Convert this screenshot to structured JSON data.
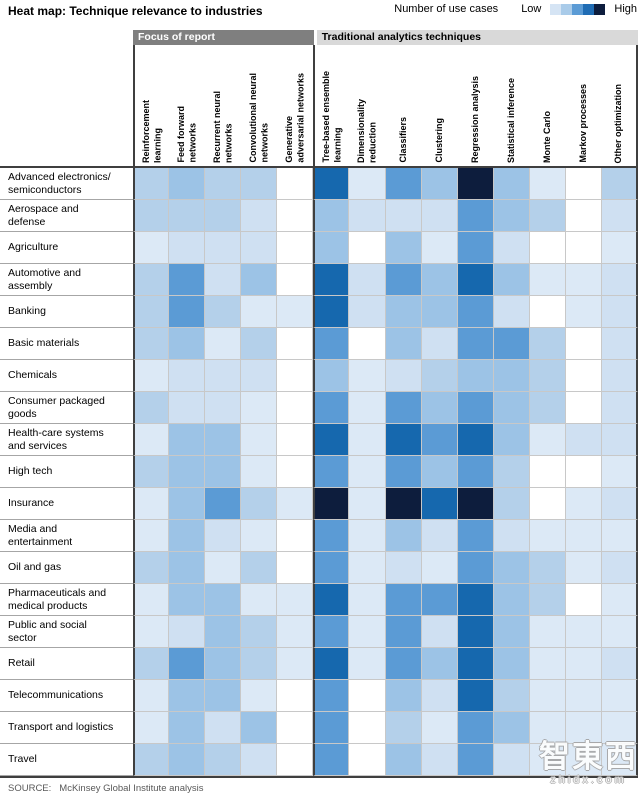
{
  "header": {
    "title": "Heat map: Technique relevance to industries",
    "legend": {
      "label": "Number of use cases",
      "low": "Low",
      "high": "High",
      "swatches": [
        "#d5e4f4",
        "#a9cbe9",
        "#5b9bd5",
        "#1f6cb4",
        "#0d1d3d"
      ]
    }
  },
  "groups": [
    {
      "label": "Focus of report",
      "col_span": 5,
      "bg": "#7f7f7f",
      "fg": "#ffffff"
    },
    {
      "label": "Traditional analytics techniques",
      "col_span": 9,
      "bg": "#d9d9d9",
      "fg": "#000000"
    }
  ],
  "chart_data": {
    "type": "heatmap",
    "title": "Heat map: Technique relevance to industries",
    "legend": "Number of use cases (Low to High)",
    "x_labels": [
      "Reinforcement\nlearning",
      "Feed forward\nnetworks",
      "Recurrent neural\nnetworks",
      "Convolutional neural\nnetworks",
      "Generative\nadversarial networks",
      "Tree-based ensemble\nlearning",
      "Dimensionality\nreduction",
      "Classifiers",
      "Clustering",
      "Regression analysis",
      "Statistical inference",
      "Monte Carlo",
      "Markov processes",
      "Other optimization"
    ],
    "y_labels": [
      "Advanced electronics/\nsemiconductors",
      "Aerospace and\ndefense",
      "Agriculture",
      "Automotive and\nassembly",
      "Banking",
      "Basic materials",
      "Chemicals",
      "Consumer packaged\ngoods",
      "Health-care systems\nand services",
      "High tech",
      "Insurance",
      "Media and\nentertainment",
      "Oil and gas",
      "Pharmaceuticals and\nmedical products",
      "Public and social\nsector",
      "Retail",
      "Telecommunications",
      "Transport and logistics",
      "Travel"
    ],
    "scale": {
      "description": "0 = none/white, 7 = highest number of use cases",
      "levels": [
        "#ffffff",
        "#dce9f6",
        "#cfe0f2",
        "#b4d0ea",
        "#9cc3e6",
        "#5b9bd5",
        "#1668ae",
        "#0d1d3d"
      ]
    },
    "values": [
      [
        3,
        4,
        3,
        3,
        0,
        6,
        1,
        5,
        4,
        7,
        4,
        1,
        0,
        3
      ],
      [
        3,
        3,
        3,
        2,
        0,
        4,
        2,
        2,
        2,
        5,
        4,
        3,
        0,
        2
      ],
      [
        1,
        2,
        2,
        2,
        0,
        4,
        0,
        4,
        1,
        5,
        2,
        0,
        0,
        1
      ],
      [
        3,
        5,
        2,
        4,
        0,
        6,
        2,
        5,
        4,
        6,
        4,
        1,
        1,
        2
      ],
      [
        3,
        5,
        3,
        1,
        1,
        6,
        2,
        4,
        4,
        5,
        2,
        0,
        1,
        2
      ],
      [
        3,
        4,
        1,
        3,
        0,
        5,
        0,
        4,
        2,
        5,
        5,
        3,
        0,
        2
      ],
      [
        1,
        2,
        2,
        2,
        0,
        4,
        1,
        2,
        3,
        4,
        4,
        3,
        0,
        2
      ],
      [
        3,
        2,
        2,
        1,
        0,
        5,
        1,
        5,
        4,
        5,
        4,
        3,
        0,
        2
      ],
      [
        1,
        4,
        4,
        1,
        0,
        6,
        1,
        6,
        5,
        6,
        4,
        1,
        2,
        2
      ],
      [
        3,
        4,
        4,
        1,
        0,
        5,
        1,
        5,
        4,
        5,
        3,
        0,
        0,
        1
      ],
      [
        1,
        4,
        5,
        3,
        1,
        7,
        1,
        7,
        6,
        7,
        3,
        0,
        1,
        2
      ],
      [
        1,
        4,
        2,
        1,
        0,
        5,
        1,
        4,
        2,
        5,
        2,
        1,
        1,
        1
      ],
      [
        3,
        4,
        1,
        3,
        0,
        5,
        1,
        2,
        1,
        5,
        4,
        3,
        1,
        2
      ],
      [
        1,
        4,
        4,
        1,
        1,
        6,
        1,
        5,
        5,
        6,
        4,
        3,
        0,
        1
      ],
      [
        1,
        2,
        4,
        3,
        1,
        5,
        1,
        5,
        2,
        6,
        4,
        1,
        1,
        1
      ],
      [
        3,
        5,
        4,
        3,
        1,
        6,
        1,
        5,
        4,
        6,
        4,
        1,
        1,
        2
      ],
      [
        1,
        4,
        4,
        1,
        0,
        5,
        0,
        4,
        2,
        6,
        3,
        1,
        1,
        1
      ],
      [
        1,
        4,
        2,
        4,
        0,
        5,
        0,
        3,
        1,
        5,
        4,
        1,
        1,
        1
      ],
      [
        3,
        4,
        3,
        2,
        0,
        5,
        0,
        4,
        2,
        5,
        2,
        1,
        1,
        1
      ]
    ]
  },
  "footer": {
    "source_label": "SOURCE:",
    "source_text": "McKinsey Global Institute analysis"
  },
  "watermark": {
    "line1": "智東西",
    "line2": "zhidx.com"
  }
}
